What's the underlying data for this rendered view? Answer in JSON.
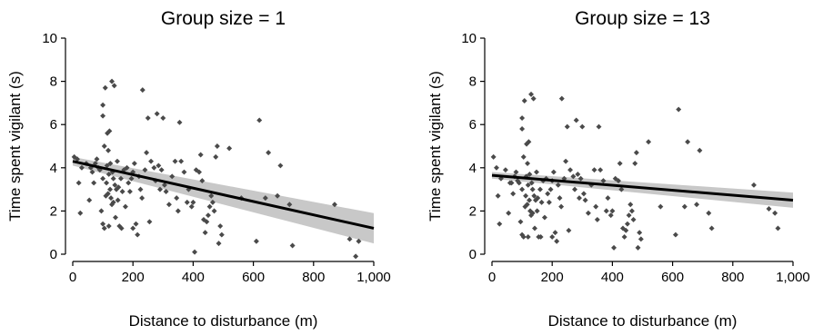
{
  "chart_data": [
    {
      "type": "scatter",
      "title": "Group size = 1",
      "xlabel": "Distance to disturbance (m)",
      "ylabel": "Time spent vigilant (s)",
      "xlim": [
        0,
        1000
      ],
      "ylim": [
        0,
        10
      ],
      "xticks": [
        "0",
        "200",
        "400",
        "600",
        "800",
        "1,000"
      ],
      "yticks": [
        "0",
        "2",
        "4",
        "6",
        "8",
        "10"
      ],
      "grid": false,
      "fit": {
        "x": [
          0,
          1000
        ],
        "y": [
          4.3,
          1.2
        ],
        "ci_lower": [
          4.1,
          0.5
        ],
        "ci_upper": [
          4.5,
          1.9
        ]
      },
      "points": [
        [
          5,
          4.5
        ],
        [
          15,
          4.4
        ],
        [
          20,
          3.3
        ],
        [
          25,
          1.9
        ],
        [
          30,
          4.0
        ],
        [
          45,
          4.2
        ],
        [
          55,
          2.5
        ],
        [
          60,
          4.0
        ],
        [
          65,
          3.8
        ],
        [
          70,
          3.3
        ],
        [
          75,
          4.2
        ],
        [
          80,
          4.4
        ],
        [
          85,
          4.0
        ],
        [
          90,
          3.9
        ],
        [
          95,
          2.0
        ],
        [
          100,
          1.4
        ],
        [
          100,
          3.5
        ],
        [
          100,
          6.4
        ],
        [
          100,
          6.9
        ],
        [
          105,
          1.2
        ],
        [
          105,
          5.0
        ],
        [
          108,
          7.7
        ],
        [
          110,
          2.7
        ],
        [
          112,
          3.3
        ],
        [
          114,
          4.1
        ],
        [
          115,
          5.6
        ],
        [
          117,
          2.8
        ],
        [
          118,
          4.8
        ],
        [
          120,
          1.3
        ],
        [
          120,
          3.7
        ],
        [
          122,
          5.7
        ],
        [
          124,
          3.0
        ],
        [
          125,
          4.2
        ],
        [
          127,
          2.6
        ],
        [
          130,
          2.3
        ],
        [
          130,
          8.0
        ],
        [
          132,
          3.8
        ],
        [
          135,
          3.5
        ],
        [
          135,
          2.4
        ],
        [
          138,
          7.8
        ],
        [
          140,
          3.2
        ],
        [
          142,
          1.7
        ],
        [
          145,
          3.0
        ],
        [
          148,
          4.3
        ],
        [
          150,
          2.5
        ],
        [
          152,
          3.1
        ],
        [
          155,
          1.3
        ],
        [
          160,
          3.5
        ],
        [
          162,
          1.2
        ],
        [
          165,
          2.9
        ],
        [
          170,
          3.9
        ],
        [
          175,
          2.2
        ],
        [
          180,
          4.0
        ],
        [
          185,
          3.3
        ],
        [
          190,
          2.9
        ],
        [
          195,
          3.5
        ],
        [
          200,
          1.2
        ],
        [
          200,
          3.8
        ],
        [
          205,
          4.2
        ],
        [
          210,
          1.4
        ],
        [
          215,
          0.9
        ],
        [
          220,
          3.6
        ],
        [
          225,
          3.0
        ],
        [
          230,
          2.6
        ],
        [
          232,
          7.6
        ],
        [
          240,
          3.9
        ],
        [
          245,
          4.7
        ],
        [
          250,
          6.3
        ],
        [
          255,
          1.5
        ],
        [
          260,
          4.3
        ],
        [
          270,
          4.0
        ],
        [
          275,
          3.4
        ],
        [
          280,
          6.5
        ],
        [
          285,
          4.1
        ],
        [
          290,
          3.0
        ],
        [
          295,
          3.9
        ],
        [
          300,
          6.3
        ],
        [
          305,
          3.2
        ],
        [
          310,
          2.9
        ],
        [
          320,
          2.3
        ],
        [
          330,
          3.6
        ],
        [
          340,
          4.3
        ],
        [
          345,
          2.6
        ],
        [
          350,
          2.0
        ],
        [
          355,
          6.1
        ],
        [
          360,
          4.3
        ],
        [
          370,
          3.8
        ],
        [
          380,
          2.4
        ],
        [
          385,
          3.0
        ],
        [
          395,
          2.2
        ],
        [
          400,
          2.4
        ],
        [
          405,
          0.1
        ],
        [
          410,
          3.9
        ],
        [
          420,
          3.8
        ],
        [
          425,
          4.6
        ],
        [
          430,
          3.4
        ],
        [
          435,
          1.6
        ],
        [
          440,
          1.0
        ],
        [
          445,
          1.5
        ],
        [
          450,
          1.8
        ],
        [
          455,
          2.2
        ],
        [
          460,
          2.7
        ],
        [
          465,
          2.4
        ],
        [
          470,
          2.0
        ],
        [
          475,
          4.5
        ],
        [
          480,
          5.0
        ],
        [
          485,
          0.5
        ],
        [
          490,
          1.3
        ],
        [
          495,
          0.9
        ],
        [
          520,
          4.9
        ],
        [
          560,
          2.6
        ],
        [
          610,
          0.6
        ],
        [
          620,
          6.2
        ],
        [
          640,
          2.6
        ],
        [
          650,
          4.7
        ],
        [
          680,
          2.7
        ],
        [
          690,
          4.1
        ],
        [
          720,
          2.3
        ],
        [
          730,
          0.4
        ],
        [
          870,
          2.3
        ],
        [
          920,
          0.7
        ],
        [
          940,
          -0.1
        ],
        [
          950,
          0.6
        ]
      ]
    },
    {
      "type": "scatter",
      "title": "Group size = 13",
      "xlabel": "Distance to disturbance (m)",
      "ylabel": "Time spent vigilant (s)",
      "xlim": [
        0,
        1000
      ],
      "ylim": [
        0,
        10
      ],
      "xticks": [
        "0",
        "200",
        "400",
        "600",
        "800",
        "1,000"
      ],
      "yticks": [
        "0",
        "2",
        "4",
        "6",
        "8",
        "10"
      ],
      "grid": false,
      "fit": {
        "x": [
          0,
          1000
        ],
        "y": [
          3.65,
          2.5
        ],
        "ci_lower": [
          3.5,
          2.15
        ],
        "ci_upper": [
          3.8,
          2.85
        ]
      },
      "points": [
        [
          5,
          4.5
        ],
        [
          15,
          4.0
        ],
        [
          20,
          2.7
        ],
        [
          25,
          1.4
        ],
        [
          30,
          3.5
        ],
        [
          45,
          3.9
        ],
        [
          55,
          1.9
        ],
        [
          60,
          3.3
        ],
        [
          65,
          3.3
        ],
        [
          70,
          2.8
        ],
        [
          75,
          3.6
        ],
        [
          80,
          3.8
        ],
        [
          85,
          3.4
        ],
        [
          90,
          3.3
        ],
        [
          95,
          1.5
        ],
        [
          100,
          0.9
        ],
        [
          100,
          3.0
        ],
        [
          100,
          5.8
        ],
        [
          100,
          6.3
        ],
        [
          105,
          0.8
        ],
        [
          105,
          4.5
        ],
        [
          108,
          7.1
        ],
        [
          110,
          2.2
        ],
        [
          112,
          2.7
        ],
        [
          114,
          3.6
        ],
        [
          115,
          5.1
        ],
        [
          117,
          2.3
        ],
        [
          118,
          4.2
        ],
        [
          120,
          0.8
        ],
        [
          120,
          3.2
        ],
        [
          122,
          5.2
        ],
        [
          124,
          2.5
        ],
        [
          125,
          3.7
        ],
        [
          127,
          2.0
        ],
        [
          130,
          1.8
        ],
        [
          130,
          7.4
        ],
        [
          132,
          3.3
        ],
        [
          135,
          3.0
        ],
        [
          135,
          1.9
        ],
        [
          138,
          7.2
        ],
        [
          140,
          2.7
        ],
        [
          142,
          1.2
        ],
        [
          145,
          2.5
        ],
        [
          148,
          3.8
        ],
        [
          150,
          2.0
        ],
        [
          152,
          2.6
        ],
        [
          155,
          0.8
        ],
        [
          160,
          3.0
        ],
        [
          162,
          0.8
        ],
        [
          165,
          2.4
        ],
        [
          170,
          3.4
        ],
        [
          175,
          1.7
        ],
        [
          180,
          3.5
        ],
        [
          185,
          2.8
        ],
        [
          190,
          2.4
        ],
        [
          195,
          3.0
        ],
        [
          200,
          0.8
        ],
        [
          200,
          3.4
        ],
        [
          205,
          3.8
        ],
        [
          210,
          1.0
        ],
        [
          215,
          0.6
        ],
        [
          220,
          3.2
        ],
        [
          225,
          2.6
        ],
        [
          230,
          2.2
        ],
        [
          232,
          7.2
        ],
        [
          240,
          3.5
        ],
        [
          245,
          4.3
        ],
        [
          250,
          5.9
        ],
        [
          255,
          1.1
        ],
        [
          260,
          3.9
        ],
        [
          270,
          3.6
        ],
        [
          275,
          3.0
        ],
        [
          280,
          6.2
        ],
        [
          285,
          3.7
        ],
        [
          290,
          2.6
        ],
        [
          295,
          3.5
        ],
        [
          300,
          5.9
        ],
        [
          305,
          2.8
        ],
        [
          310,
          2.5
        ],
        [
          320,
          1.9
        ],
        [
          330,
          3.2
        ],
        [
          340,
          3.9
        ],
        [
          345,
          2.2
        ],
        [
          350,
          1.6
        ],
        [
          355,
          5.9
        ],
        [
          360,
          3.9
        ],
        [
          370,
          3.4
        ],
        [
          380,
          2.0
        ],
        [
          385,
          2.6
        ],
        [
          395,
          1.8
        ],
        [
          400,
          2.0
        ],
        [
          405,
          0.3
        ],
        [
          410,
          3.5
        ],
        [
          420,
          3.4
        ],
        [
          425,
          4.2
        ],
        [
          430,
          3.0
        ],
        [
          435,
          1.2
        ],
        [
          440,
          0.8
        ],
        [
          445,
          1.1
        ],
        [
          450,
          1.4
        ],
        [
          455,
          1.8
        ],
        [
          460,
          2.3
        ],
        [
          465,
          2.0
        ],
        [
          470,
          1.6
        ],
        [
          475,
          4.2
        ],
        [
          480,
          4.7
        ],
        [
          485,
          0.3
        ],
        [
          490,
          1.0
        ],
        [
          495,
          0.7
        ],
        [
          520,
          5.2
        ],
        [
          560,
          2.2
        ],
        [
          610,
          0.9
        ],
        [
          620,
          6.7
        ],
        [
          640,
          2.2
        ],
        [
          650,
          5.2
        ],
        [
          680,
          2.3
        ],
        [
          690,
          4.8
        ],
        [
          720,
          1.9
        ],
        [
          730,
          1.2
        ],
        [
          870,
          3.2
        ],
        [
          920,
          2.1
        ],
        [
          940,
          1.9
        ],
        [
          950,
          1.2
        ]
      ]
    }
  ]
}
